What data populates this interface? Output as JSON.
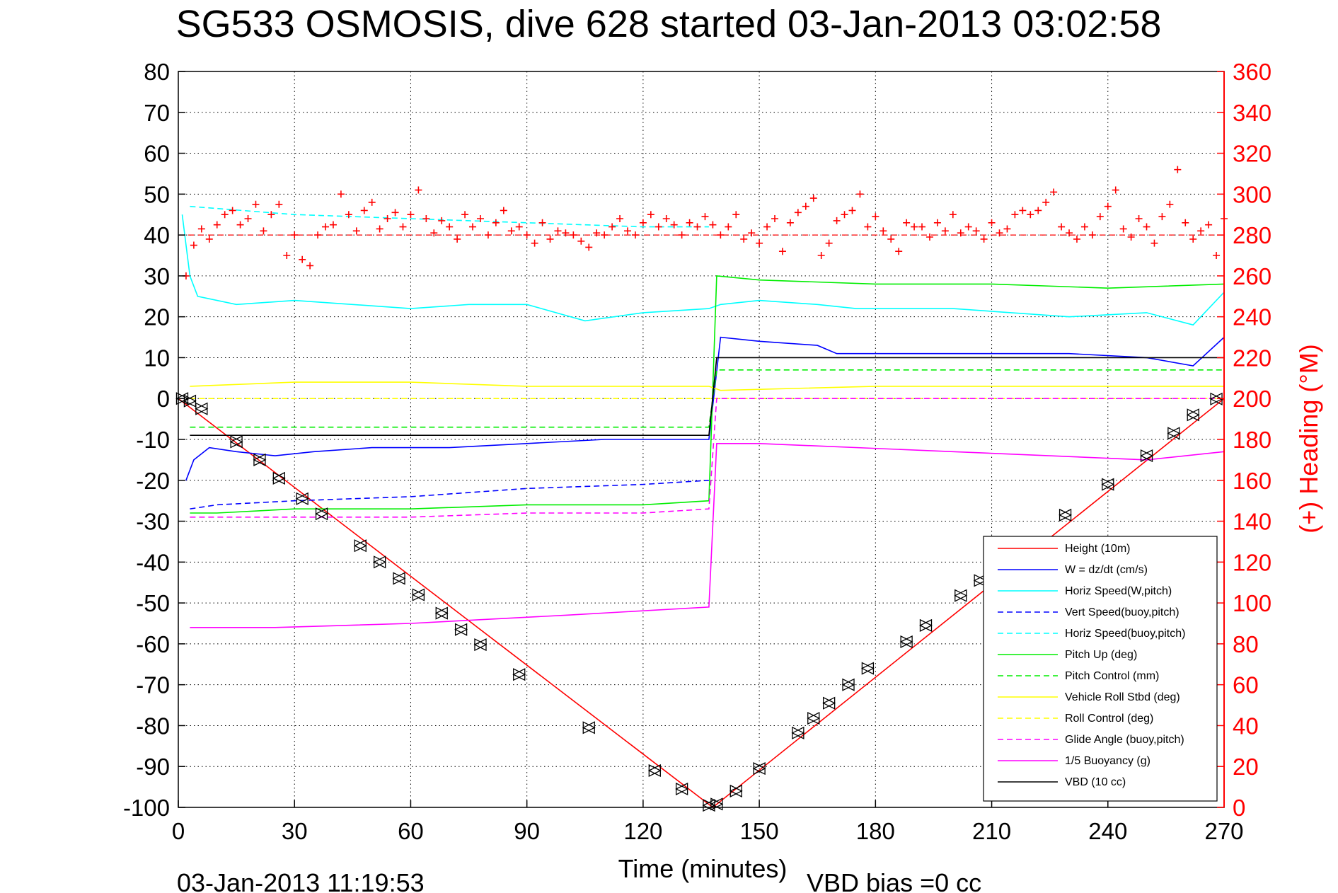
{
  "chart_data": {
    "type": "line",
    "title": "SG533 OSMOSIS, dive 628 started 03-Jan-2013 03:02:58",
    "xlabel": "Time (minutes)",
    "ylabel_right": "(+) Heading (°M)",
    "footer_left": "03-Jan-2013 11:19:53",
    "footer_right": "VBD bias =0 cc",
    "xlim": [
      0,
      270
    ],
    "ylim": [
      -100,
      80
    ],
    "ylim_right": [
      0,
      360
    ],
    "x_ticks": [
      "0",
      "30",
      "60",
      "90",
      "120",
      "150",
      "180",
      "210",
      "240",
      "270"
    ],
    "y_ticks": [
      "80",
      "70",
      "60",
      "50",
      "40",
      "30",
      "20",
      "10",
      "0",
      "-10",
      "-20",
      "-30",
      "-40",
      "-50",
      "-60",
      "-70",
      "-80",
      "-90",
      "-100"
    ],
    "y_ticks_right": [
      "360",
      "340",
      "320",
      "300",
      "280",
      "260",
      "240",
      "220",
      "200",
      "180",
      "160",
      "140",
      "120",
      "100",
      "80",
      "60",
      "40",
      "20",
      "0"
    ],
    "grid": true,
    "legend_position": "bottom-right",
    "heading_reference": 280,
    "series": [
      {
        "name": "Height (10m)",
        "color": "#ff0000",
        "style": "solid",
        "x": [
          0,
          138,
          270
        ],
        "y": [
          0,
          -100,
          0
        ]
      },
      {
        "name": "W = dz/dt (cm/s)",
        "color": "#0000ff",
        "style": "solid",
        "x": [
          2,
          4,
          8,
          15,
          25,
          35,
          50,
          70,
          90,
          110,
          137,
          140,
          150,
          165,
          170,
          190,
          210,
          230,
          250,
          262,
          270
        ],
        "y": [
          -20,
          -15,
          -12,
          -13,
          -14,
          -13,
          -12,
          -12,
          -11,
          -10,
          -10,
          15,
          14,
          13,
          11,
          11,
          11,
          11,
          10,
          8,
          15
        ]
      },
      {
        "name": "Horiz Speed(W,pitch)",
        "color": "#00ffff",
        "style": "solid",
        "x": [
          1,
          3,
          5,
          15,
          30,
          45,
          60,
          75,
          90,
          105,
          120,
          137,
          140,
          150,
          165,
          175,
          200,
          230,
          250,
          262,
          270
        ],
        "y": [
          45,
          30,
          25,
          23,
          24,
          23,
          22,
          23,
          23,
          19,
          21,
          22,
          23,
          24,
          23,
          22,
          22,
          20,
          21,
          18,
          26
        ]
      },
      {
        "name": "Vert Speed(buoy,pitch)",
        "color": "#0000ff",
        "style": "dashed",
        "x": [
          3,
          10,
          30,
          60,
          90,
          120,
          137
        ],
        "y": [
          -27,
          -26,
          -25,
          -24,
          -22,
          -21,
          -20
        ]
      },
      {
        "name": "Horiz Speed(buoy,pitch)",
        "color": "#00ffff",
        "style": "dashed",
        "x": [
          3,
          30,
          60,
          90,
          120,
          137
        ],
        "y": [
          47,
          45,
          44,
          43,
          42,
          42
        ]
      },
      {
        "name": "Pitch Up (deg)",
        "color": "#00ee00",
        "style": "solid",
        "x": [
          3,
          10,
          30,
          60,
          90,
          120,
          137,
          139,
          150,
          180,
          210,
          240,
          270
        ],
        "y": [
          -28,
          -28,
          -27,
          -27,
          -26,
          -26,
          -25,
          30,
          29,
          28,
          28,
          27,
          28
        ]
      },
      {
        "name": "Pitch Control (mm)",
        "color": "#00ee00",
        "style": "dashed",
        "x": [
          3,
          137,
          139,
          270
        ],
        "y": [
          -7,
          -7,
          7,
          7
        ]
      },
      {
        "name": "Vehicle Roll Stbd (deg)",
        "color": "#ffff00",
        "style": "solid",
        "x": [
          3,
          30,
          60,
          90,
          120,
          137,
          140,
          180,
          220,
          270
        ],
        "y": [
          3,
          4,
          4,
          3,
          3,
          3,
          2,
          3,
          3,
          3
        ]
      },
      {
        "name": "Roll Control (deg)",
        "color": "#ffff00",
        "style": "dashed",
        "x": [
          3,
          270
        ],
        "y": [
          0,
          0
        ]
      },
      {
        "name": "Glide Angle (buoy,pitch)",
        "color": "#ff00ff",
        "style": "dashed",
        "x": [
          3,
          30,
          60,
          90,
          120,
          137,
          139,
          270
        ],
        "y": [
          -29,
          -29,
          -29,
          -28,
          -28,
          -27,
          0,
          0
        ]
      },
      {
        "name": "1/5 Buoyancy (g)",
        "color": "#ff00ff",
        "style": "solid",
        "x": [
          3,
          25,
          60,
          100,
          137,
          139,
          150,
          200,
          250,
          270
        ],
        "y": [
          -56,
          -56,
          -55,
          -53,
          -51,
          -11,
          -11,
          -13,
          -15,
          -13
        ]
      },
      {
        "name": "VBD (10 cc)",
        "color": "#000000",
        "style": "solid",
        "x": [
          3,
          137,
          139,
          270
        ],
        "y": [
          -9,
          -9,
          10,
          10
        ]
      }
    ],
    "heading_series": {
      "name": "(+) Heading",
      "color": "#ff0000",
      "marker": "+",
      "x": [
        2,
        4,
        6,
        8,
        10,
        12,
        14,
        16,
        18,
        20,
        22,
        24,
        26,
        28,
        30,
        32,
        34,
        36,
        38,
        40,
        42,
        44,
        46,
        48,
        50,
        52,
        54,
        56,
        58,
        60,
        62,
        64,
        66,
        68,
        70,
        72,
        74,
        76,
        78,
        80,
        82,
        84,
        86,
        88,
        90,
        92,
        94,
        96,
        98,
        100,
        102,
        104,
        106,
        108,
        110,
        112,
        114,
        116,
        118,
        120,
        122,
        124,
        126,
        128,
        130,
        132,
        134,
        136,
        138,
        140,
        142,
        144,
        146,
        148,
        150,
        152,
        154,
        156,
        158,
        160,
        162,
        164,
        166,
        168,
        170,
        172,
        174,
        176,
        178,
        180,
        182,
        184,
        186,
        188,
        190,
        192,
        194,
        196,
        198,
        200,
        202,
        204,
        206,
        208,
        210,
        212,
        214,
        216,
        218,
        220,
        222,
        224,
        226,
        228,
        230,
        232,
        234,
        236,
        238,
        240,
        242,
        244,
        246,
        248,
        250,
        252,
        254,
        256,
        258,
        260,
        262,
        264,
        266,
        268,
        270
      ],
      "y": [
        260,
        275,
        283,
        278,
        285,
        290,
        292,
        285,
        288,
        295,
        282,
        290,
        295,
        270,
        280,
        268,
        265,
        280,
        284,
        285,
        300,
        290,
        282,
        292,
        296,
        283,
        288,
        291,
        284,
        290,
        302,
        288,
        281,
        287,
        284,
        278,
        290,
        284,
        288,
        280,
        286,
        292,
        282,
        284,
        280,
        276,
        286,
        278,
        282,
        281,
        280,
        277,
        274,
        281,
        280,
        284,
        288,
        282,
        280,
        286,
        290,
        284,
        288,
        285,
        280,
        286,
        284,
        289,
        285,
        280,
        284,
        290,
        278,
        281,
        276,
        284,
        288,
        272,
        286,
        291,
        294,
        298,
        270,
        276,
        287,
        290,
        292,
        300,
        284,
        289,
        282,
        278,
        272,
        286,
        284,
        284,
        279,
        286,
        282,
        290,
        281,
        284,
        282,
        278,
        286,
        281,
        283,
        290,
        292,
        290,
        292,
        296,
        301,
        284,
        281,
        278,
        284,
        280,
        289,
        294,
        302,
        283,
        279,
        288,
        284,
        276,
        289,
        295,
        312,
        286,
        278,
        282,
        285,
        270,
        288
      ]
    },
    "height_markers": {
      "x": [
        1,
        3,
        6,
        15,
        21,
        26,
        32,
        37,
        47,
        52,
        57,
        62,
        68,
        73,
        78,
        88,
        106,
        123,
        130,
        137,
        139,
        144,
        150,
        160,
        164,
        168,
        173,
        178,
        188,
        193,
        202,
        207,
        229,
        240,
        250,
        257,
        262,
        268
      ],
      "y": [
        0,
        -0.6,
        -2.5,
        -10.6,
        -15,
        -19.5,
        -24.5,
        -28.2,
        -36,
        -40,
        -44,
        -48,
        -52.5,
        -56.5,
        -60.2,
        -67.5,
        -80.5,
        -91,
        -95.5,
        -99.5,
        -99.2,
        -96,
        -90.5,
        -81.8,
        -78.2,
        -74.5,
        -70,
        -66,
        -59.5,
        -55.5,
        -48.2,
        -44.5,
        -28.5,
        -21,
        -14,
        -8.5,
        -4,
        -0.1
      ]
    },
    "legend": [
      "Height (10m)",
      "W = dz/dt (cm/s)",
      "Horiz Speed(W,pitch)",
      "Vert Speed(buoy,pitch)",
      "Horiz Speed(buoy,pitch)",
      "Pitch Up (deg)",
      "Pitch Control (mm)",
      "Vehicle Roll Stbd (deg)",
      "Roll Control (deg)",
      "Glide Angle (buoy,pitch)",
      "1/5 Buoyancy (g)",
      "VBD (10 cc)"
    ]
  }
}
